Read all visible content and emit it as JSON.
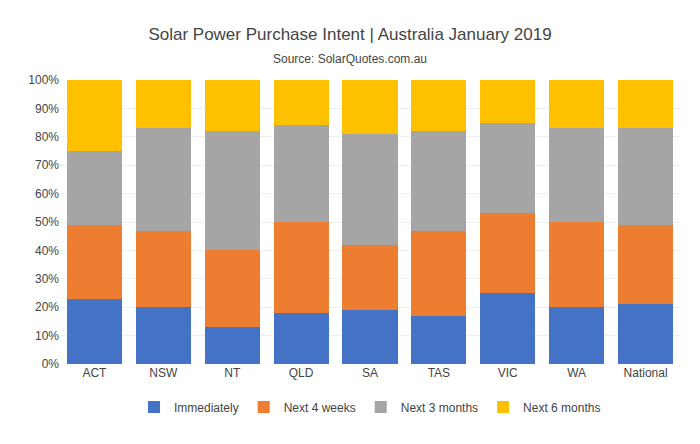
{
  "chart_data": {
    "type": "bar",
    "stacked": true,
    "title": "Solar Power Purchase Intent | Australia January 2019",
    "subtitle": "Source: SolarQuotes.com.au",
    "categories": [
      "ACT",
      "NSW",
      "NT",
      "QLD",
      "SA",
      "TAS",
      "VIC",
      "WA",
      "National"
    ],
    "series": [
      {
        "name": "Immediately",
        "color": "#4472C4",
        "values": [
          23,
          20,
          13,
          18,
          19,
          17,
          25,
          20,
          21
        ]
      },
      {
        "name": "Next 4 weeks",
        "color": "#ED7D31",
        "values": [
          26,
          27,
          27,
          32,
          23,
          30,
          28,
          30,
          28
        ]
      },
      {
        "name": "Next 3 months",
        "color": "#A5A5A5",
        "values": [
          26,
          36,
          42,
          34,
          39,
          35,
          32,
          33,
          34
        ]
      },
      {
        "name": "Next 6 months",
        "color": "#FFC000",
        "values": [
          25,
          17,
          18,
          16,
          19,
          18,
          15,
          17,
          17
        ]
      }
    ],
    "ylim": [
      0,
      100
    ],
    "yticks": [
      {
        "value": 0,
        "label": "0%"
      },
      {
        "value": 10,
        "label": "10%"
      },
      {
        "value": 20,
        "label": "20%"
      },
      {
        "value": 30,
        "label": "30%"
      },
      {
        "value": 40,
        "label": "40%"
      },
      {
        "value": 50,
        "label": "50%"
      },
      {
        "value": 60,
        "label": "60%"
      },
      {
        "value": 70,
        "label": "70%"
      },
      {
        "value": 80,
        "label": "80%"
      },
      {
        "value": 90,
        "label": "90%"
      },
      {
        "value": 100,
        "label": "100%"
      }
    ],
    "grid": true,
    "legend": "bottom"
  }
}
